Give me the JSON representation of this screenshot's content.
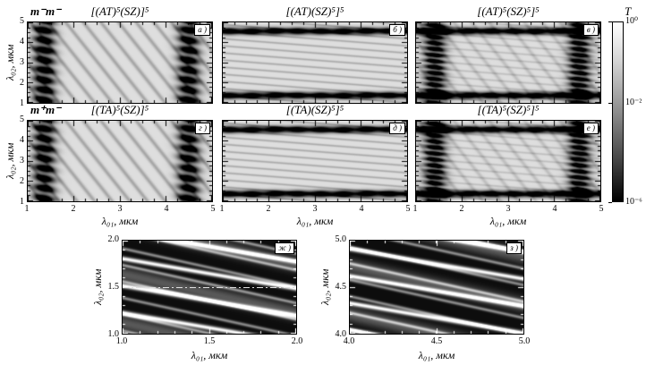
{
  "figure": {
    "row_labels": [
      {
        "text": "m⁻m⁻"
      },
      {
        "text": "m⁺m⁻"
      }
    ],
    "axis": {
      "xlabel": "λ₀₁, мкм",
      "ylabel": "λ₀₂, мкм"
    },
    "colorbar": {
      "title": "T",
      "scale": "log",
      "range": [
        "1e-6",
        "1e0"
      ],
      "ticks": [
        {
          "label": "10⁰",
          "pos": 0.0
        },
        {
          "label": "10⁻²",
          "pos": 0.45
        },
        {
          "label": "10⁻⁶",
          "pos": 1.0
        }
      ]
    }
  },
  "chart_data": [
    {
      "id": "a",
      "type": "heatmap",
      "panel_label": "а )",
      "title": "[(AT)⁵(SZ)]⁵",
      "config_row": "m⁻m⁻",
      "xlabel": "λ₀₁, мкм",
      "ylabel": "λ₀₂, мкм",
      "x_range": [
        1,
        5
      ],
      "y_range": [
        1,
        5
      ],
      "x_ticks": [
        "1",
        "2",
        "3",
        "4",
        "5"
      ],
      "y_ticks": [
        "1",
        "2",
        "3",
        "4",
        "5"
      ],
      "minor_tick_step": 0.25,
      "value_scale": "log",
      "value_range": [
        "1e-6",
        "1e0"
      ],
      "colormap": "grayscale white=1 black=1e-6",
      "pattern": {
        "kind": "bands",
        "stripes": [
          [
            2.6,
            0.9,
            0.22,
            5
          ]
        ],
        "vertical_bands_x": [
          1.35,
          4.5
        ],
        "horizontal_bands_y": [],
        "eye_period": 0.5,
        "tick_color": "#000"
      }
    },
    {
      "id": "b",
      "type": "heatmap",
      "panel_label": "б )",
      "title": "[(AT)(SZ)⁵]⁵",
      "config_row": "m⁻m⁻",
      "xlabel": "λ₀₁, мкм",
      "ylabel": "λ₀₂, мкм",
      "x_range": [
        1,
        5
      ],
      "y_range": [
        1,
        5
      ],
      "x_ticks": [
        "1",
        "2",
        "3",
        "4",
        "5"
      ],
      "y_ticks": [
        "1",
        "2",
        "3",
        "4",
        "5"
      ],
      "minor_tick_step": 0.25,
      "value_scale": "log",
      "value_range": [
        "1e-6",
        "1e0"
      ],
      "colormap": "grayscale white=1 black=1e-6",
      "pattern": {
        "kind": "bands",
        "stripes": [
          [
            0.5,
            2.8,
            0.2,
            5
          ]
        ],
        "vertical_bands_x": [],
        "horizontal_bands_y": [
          1.35,
          4.58
        ],
        "eye_period": 0.5,
        "tick_color": "#000"
      }
    },
    {
      "id": "v",
      "type": "heatmap",
      "panel_label": "в )",
      "title": "[(AT)⁵(SZ)⁵]⁵",
      "config_row": "m⁻m⁻",
      "xlabel": "λ₀₁, мкм",
      "ylabel": "λ₀₂, мкм",
      "x_range": [
        1,
        5
      ],
      "y_range": [
        1,
        5
      ],
      "x_ticks": [
        "1",
        "2",
        "3",
        "4",
        "5"
      ],
      "y_ticks": [
        "1",
        "2",
        "3",
        "4",
        "5"
      ],
      "minor_tick_step": 0.25,
      "value_scale": "log",
      "value_range": [
        "1e-6",
        "1e0"
      ],
      "colormap": "grayscale white=1 black=1e-6",
      "pattern": {
        "kind": "bands",
        "stripes": [
          [
            2.6,
            0.9,
            0.12,
            5
          ],
          [
            0.5,
            2.8,
            0.12,
            5
          ]
        ],
        "vertical_bands_x": [
          1.4,
          4.55
        ],
        "horizontal_bands_y": [
          1.35,
          4.58
        ],
        "eye_period": 0.3,
        "tick_color": "#000"
      }
    },
    {
      "id": "g",
      "type": "heatmap",
      "panel_label": "г )",
      "title": "[(TA)⁵(SZ)]⁵",
      "config_row": "m⁺m⁻",
      "xlabel": "λ₀₁, мкм",
      "ylabel": "λ₀₂, мкм",
      "x_range": [
        1,
        5
      ],
      "y_range": [
        1,
        5
      ],
      "x_ticks": [
        "1",
        "2",
        "3",
        "4",
        "5"
      ],
      "y_ticks": [
        "1",
        "2",
        "3",
        "4",
        "5"
      ],
      "minor_tick_step": 0.25,
      "value_scale": "log",
      "value_range": [
        "1e-6",
        "1e0"
      ],
      "colormap": "grayscale white=1 black=1e-6",
      "pattern": {
        "kind": "bands",
        "stripes": [
          [
            2.6,
            0.9,
            0.22,
            5
          ]
        ],
        "vertical_bands_x": [
          1.35,
          4.5
        ],
        "horizontal_bands_y": [],
        "eye_period": 0.5,
        "tick_color": "#000"
      }
    },
    {
      "id": "d",
      "type": "heatmap",
      "panel_label": "д )",
      "title": "[(TA)(SZ)⁵]⁵",
      "config_row": "m⁺m⁻",
      "xlabel": "λ₀₁, мкм",
      "ylabel": "λ₀₂, мкм",
      "x_range": [
        1,
        5
      ],
      "y_range": [
        1,
        5
      ],
      "x_ticks": [
        "1",
        "2",
        "3",
        "4",
        "5"
      ],
      "y_ticks": [
        "1",
        "2",
        "3",
        "4",
        "5"
      ],
      "minor_tick_step": 0.25,
      "value_scale": "log",
      "value_range": [
        "1e-6",
        "1e0"
      ],
      "colormap": "grayscale white=1 black=1e-6",
      "pattern": {
        "kind": "bands",
        "stripes": [
          [
            0.5,
            2.8,
            0.2,
            5
          ]
        ],
        "vertical_bands_x": [],
        "horizontal_bands_y": [
          1.35,
          4.58
        ],
        "eye_period": 0.5,
        "tick_color": "#000"
      }
    },
    {
      "id": "e",
      "type": "heatmap",
      "panel_label": "е )",
      "title": "[(TA)⁵(SZ)⁵]⁵",
      "config_row": "m⁺m⁻",
      "xlabel": "λ₀₁, мкм",
      "ylabel": "λ₀₂, мкм",
      "x_range": [
        1,
        5
      ],
      "y_range": [
        1,
        5
      ],
      "x_ticks": [
        "1",
        "2",
        "3",
        "4",
        "5"
      ],
      "y_ticks": [
        "1",
        "2",
        "3",
        "4",
        "5"
      ],
      "minor_tick_step": 0.25,
      "value_scale": "log",
      "value_range": [
        "1e-6",
        "1e0"
      ],
      "colormap": "grayscale white=1 black=1e-6",
      "pattern": {
        "kind": "bands",
        "stripes": [
          [
            2.6,
            0.9,
            0.12,
            5
          ],
          [
            0.5,
            2.8,
            0.12,
            5
          ]
        ],
        "vertical_bands_x": [
          1.4,
          4.55
        ],
        "horizontal_bands_y": [
          1.35,
          4.58
        ],
        "eye_period": 0.3,
        "tick_color": "#000"
      }
    },
    {
      "id": "zh",
      "type": "heatmap",
      "panel_label": "ж )",
      "title": "",
      "xlabel": "λ₀₁, мкм",
      "ylabel": "λ₀₂, мкм",
      "x_range": [
        1,
        2
      ],
      "y_range": [
        1,
        2
      ],
      "x_ticks": [
        "1.0",
        "1.5",
        "2.0"
      ],
      "y_ticks": [
        "1.0",
        "1.5",
        "2.0"
      ],
      "minor_tick_step": 0.1,
      "value_scale": "log",
      "value_range": [
        "1e-6",
        "1e0"
      ],
      "colormap": "grayscale white=1 black=1e-6",
      "annotations": [
        {
          "type": "dash_dot_line",
          "orientation": "horizontal",
          "y": 1.5
        }
      ],
      "pattern": {
        "kind": "zoom",
        "base": 0.05,
        "stripes": [
          [
            1.1,
            3.4,
            0.95,
            14,
            0.0
          ],
          [
            2.3,
            5.6,
            0.5,
            10,
            1.3
          ],
          [
            0.8,
            1.9,
            0.3,
            4,
            2.1
          ]
        ],
        "tick_color": "#fff"
      }
    },
    {
      "id": "z",
      "type": "heatmap",
      "panel_label": "з )",
      "title": "",
      "xlabel": "λ₀₁, мкм",
      "ylabel": "λ₀₂, мкм",
      "x_range": [
        4,
        5
      ],
      "y_range": [
        4,
        5
      ],
      "x_ticks": [
        "4.0",
        "4.5",
        "5.0"
      ],
      "y_ticks": [
        "4.0",
        "4.5",
        "5.0"
      ],
      "minor_tick_step": 0.1,
      "value_scale": "log",
      "value_range": [
        "1e-6",
        "1e0"
      ],
      "colormap": "grayscale white=1 black=1e-6",
      "pattern": {
        "kind": "zoom",
        "base": 0.05,
        "stripes": [
          [
            1.1,
            3.4,
            0.95,
            14,
            0.9
          ],
          [
            2.3,
            5.6,
            0.5,
            10,
            2.6
          ],
          [
            0.8,
            1.9,
            0.3,
            4,
            0.4
          ]
        ],
        "tick_color": "#fff"
      }
    }
  ]
}
